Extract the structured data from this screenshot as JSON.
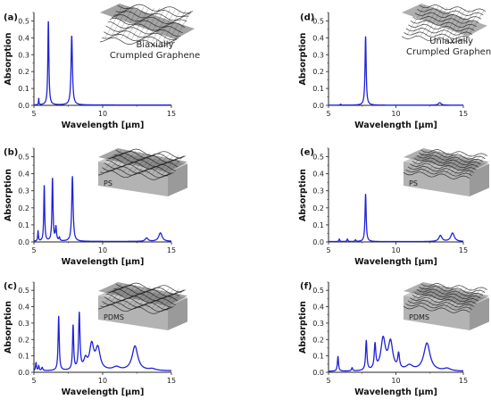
{
  "colors": {
    "line": "#1f22d6",
    "axis": "#222222",
    "substrate_top": "#c8c8c8",
    "substrate_side": "#9a9a9a"
  },
  "chart_data": [
    {
      "id": "a",
      "type": "line",
      "panel_label": "(a)",
      "xlabel": "Wavelength [µm]",
      "ylabel": "Absorption",
      "xlim": [
        5,
        15
      ],
      "ylim": [
        0,
        0.55
      ],
      "xticks": [
        "5",
        "10",
        "15"
      ],
      "yticks": [
        "0.0",
        "0.1",
        "0.2",
        "0.3",
        "0.4",
        "0.5"
      ],
      "inset": {
        "substrate": false,
        "pattern": "biaxial",
        "label_lines": [
          "Biaxially",
          "Crumpled Graphene"
        ]
      },
      "series": [
        {
          "baseline": 0.002,
          "peaks": [
            {
              "x": 5.35,
              "h": 0.04,
              "w": 0.02
            },
            {
              "x": 6.05,
              "h": 0.5,
              "w": 0.045
            },
            {
              "x": 7.75,
              "h": 0.41,
              "w": 0.06
            }
          ]
        }
      ]
    },
    {
      "id": "b",
      "type": "line",
      "panel_label": "(b)",
      "xlabel": "Wavelength [µm]",
      "ylabel": "Absorption",
      "xlim": [
        5,
        15
      ],
      "ylim": [
        0,
        0.55
      ],
      "xticks": [
        "5",
        "10",
        "15"
      ],
      "yticks": [
        "0.0",
        "0.1",
        "0.2",
        "0.3",
        "0.4",
        "0.5"
      ],
      "inset": {
        "substrate": true,
        "pattern": "biaxial",
        "label_lines": [
          "PS"
        ]
      },
      "series": [
        {
          "baseline": 0.003,
          "peaks": [
            {
              "x": 5.3,
              "h": 0.06,
              "w": 0.03
            },
            {
              "x": 5.75,
              "h": 0.33,
              "w": 0.04
            },
            {
              "x": 6.35,
              "h": 0.37,
              "w": 0.045
            },
            {
              "x": 6.6,
              "h": 0.08,
              "w": 0.05
            },
            {
              "x": 6.85,
              "h": 0.02,
              "w": 0.04
            },
            {
              "x": 7.8,
              "h": 0.38,
              "w": 0.06
            },
            {
              "x": 13.2,
              "h": 0.02,
              "w": 0.12
            },
            {
              "x": 14.2,
              "h": 0.05,
              "w": 0.15
            }
          ]
        }
      ]
    },
    {
      "id": "c",
      "type": "line",
      "panel_label": "(c)",
      "xlabel": "Wavelength [µm]",
      "ylabel": "Absorption",
      "xlim": [
        5,
        15
      ],
      "ylim": [
        0,
        0.55
      ],
      "xticks": [
        "5",
        "10",
        "15"
      ],
      "yticks": [
        "0.0",
        "0.1",
        "0.2",
        "0.3",
        "0.4",
        "0.5"
      ],
      "inset": {
        "substrate": true,
        "pattern": "biaxial",
        "label_lines": [
          "PDMS"
        ]
      },
      "series": [
        {
          "baseline": 0.008,
          "peaks": [
            {
              "x": 5.15,
              "h": 0.05,
              "w": 0.04
            },
            {
              "x": 5.35,
              "h": 0.03,
              "w": 0.04
            },
            {
              "x": 5.6,
              "h": 0.02,
              "w": 0.05
            },
            {
              "x": 6.8,
              "h": 0.33,
              "w": 0.05
            },
            {
              "x": 7.85,
              "h": 0.27,
              "w": 0.05
            },
            {
              "x": 8.3,
              "h": 0.34,
              "w": 0.06
            },
            {
              "x": 8.75,
              "h": 0.06,
              "w": 0.15
            },
            {
              "x": 9.2,
              "h": 0.15,
              "w": 0.18
            },
            {
              "x": 9.65,
              "h": 0.13,
              "w": 0.2
            },
            {
              "x": 11.0,
              "h": 0.02,
              "w": 0.3
            },
            {
              "x": 12.35,
              "h": 0.15,
              "w": 0.25
            },
            {
              "x": 13.6,
              "h": 0.01,
              "w": 0.3
            }
          ]
        }
      ]
    },
    {
      "id": "d",
      "type": "line",
      "panel_label": "(d)",
      "xlabel": "Wavelength [µm]",
      "ylabel": "Absorption",
      "xlim": [
        5,
        15
      ],
      "ylim": [
        0,
        0.55
      ],
      "xticks": [
        "5",
        "10",
        "15"
      ],
      "yticks": [
        "0.0",
        "0.1",
        "0.2",
        "0.3",
        "0.4",
        "0.5"
      ],
      "inset": {
        "substrate": false,
        "pattern": "uniaxial",
        "label_lines": [
          "Uniaxially",
          "Crumpled Graphene"
        ]
      },
      "series": [
        {
          "baseline": 0.001,
          "peaks": [
            {
              "x": 5.9,
              "h": 0.006,
              "w": 0.04
            },
            {
              "x": 7.75,
              "h": 0.41,
              "w": 0.05
            },
            {
              "x": 13.25,
              "h": 0.015,
              "w": 0.12
            }
          ]
        }
      ]
    },
    {
      "id": "e",
      "type": "line",
      "panel_label": "(e)",
      "xlabel": "Wavelength [µm]",
      "ylabel": "Absorption",
      "xlim": [
        5,
        15
      ],
      "ylim": [
        0,
        0.55
      ],
      "xticks": [
        "5",
        "10",
        "15"
      ],
      "yticks": [
        "0.0",
        "0.1",
        "0.2",
        "0.3",
        "0.4",
        "0.5"
      ],
      "inset": {
        "substrate": true,
        "pattern": "uniaxial",
        "label_lines": [
          "PS"
        ]
      },
      "series": [
        {
          "baseline": 0.002,
          "peaks": [
            {
              "x": 5.8,
              "h": 0.015,
              "w": 0.04
            },
            {
              "x": 6.4,
              "h": 0.015,
              "w": 0.04
            },
            {
              "x": 7.0,
              "h": 0.01,
              "w": 0.04
            },
            {
              "x": 7.75,
              "h": 0.28,
              "w": 0.05
            },
            {
              "x": 13.3,
              "h": 0.035,
              "w": 0.14
            },
            {
              "x": 14.2,
              "h": 0.05,
              "w": 0.16
            }
          ]
        }
      ]
    },
    {
      "id": "f",
      "type": "line",
      "panel_label": "(f)",
      "xlabel": "Wavelength [µm]",
      "ylabel": "Absorption",
      "xlim": [
        5,
        15
      ],
      "ylim": [
        0,
        0.55
      ],
      "xticks": [
        "5",
        "10",
        "15"
      ],
      "yticks": [
        "0.0",
        "0.1",
        "0.2",
        "0.3",
        "0.4",
        "0.5"
      ],
      "inset": {
        "substrate": true,
        "pattern": "uniaxial",
        "label_lines": [
          "PDMS"
        ]
      },
      "series": [
        {
          "baseline": 0.005,
          "peaks": [
            {
              "x": 5.7,
              "h": 0.09,
              "w": 0.05
            },
            {
              "x": 6.75,
              "h": 0.02,
              "w": 0.05
            },
            {
              "x": 7.8,
              "h": 0.18,
              "w": 0.06
            },
            {
              "x": 8.45,
              "h": 0.15,
              "w": 0.07
            },
            {
              "x": 9.05,
              "h": 0.19,
              "w": 0.2
            },
            {
              "x": 9.6,
              "h": 0.17,
              "w": 0.2
            },
            {
              "x": 10.2,
              "h": 0.09,
              "w": 0.08
            },
            {
              "x": 11.0,
              "h": 0.03,
              "w": 0.3
            },
            {
              "x": 12.3,
              "h": 0.17,
              "w": 0.28
            },
            {
              "x": 13.8,
              "h": 0.015,
              "w": 0.3
            }
          ]
        }
      ]
    }
  ]
}
